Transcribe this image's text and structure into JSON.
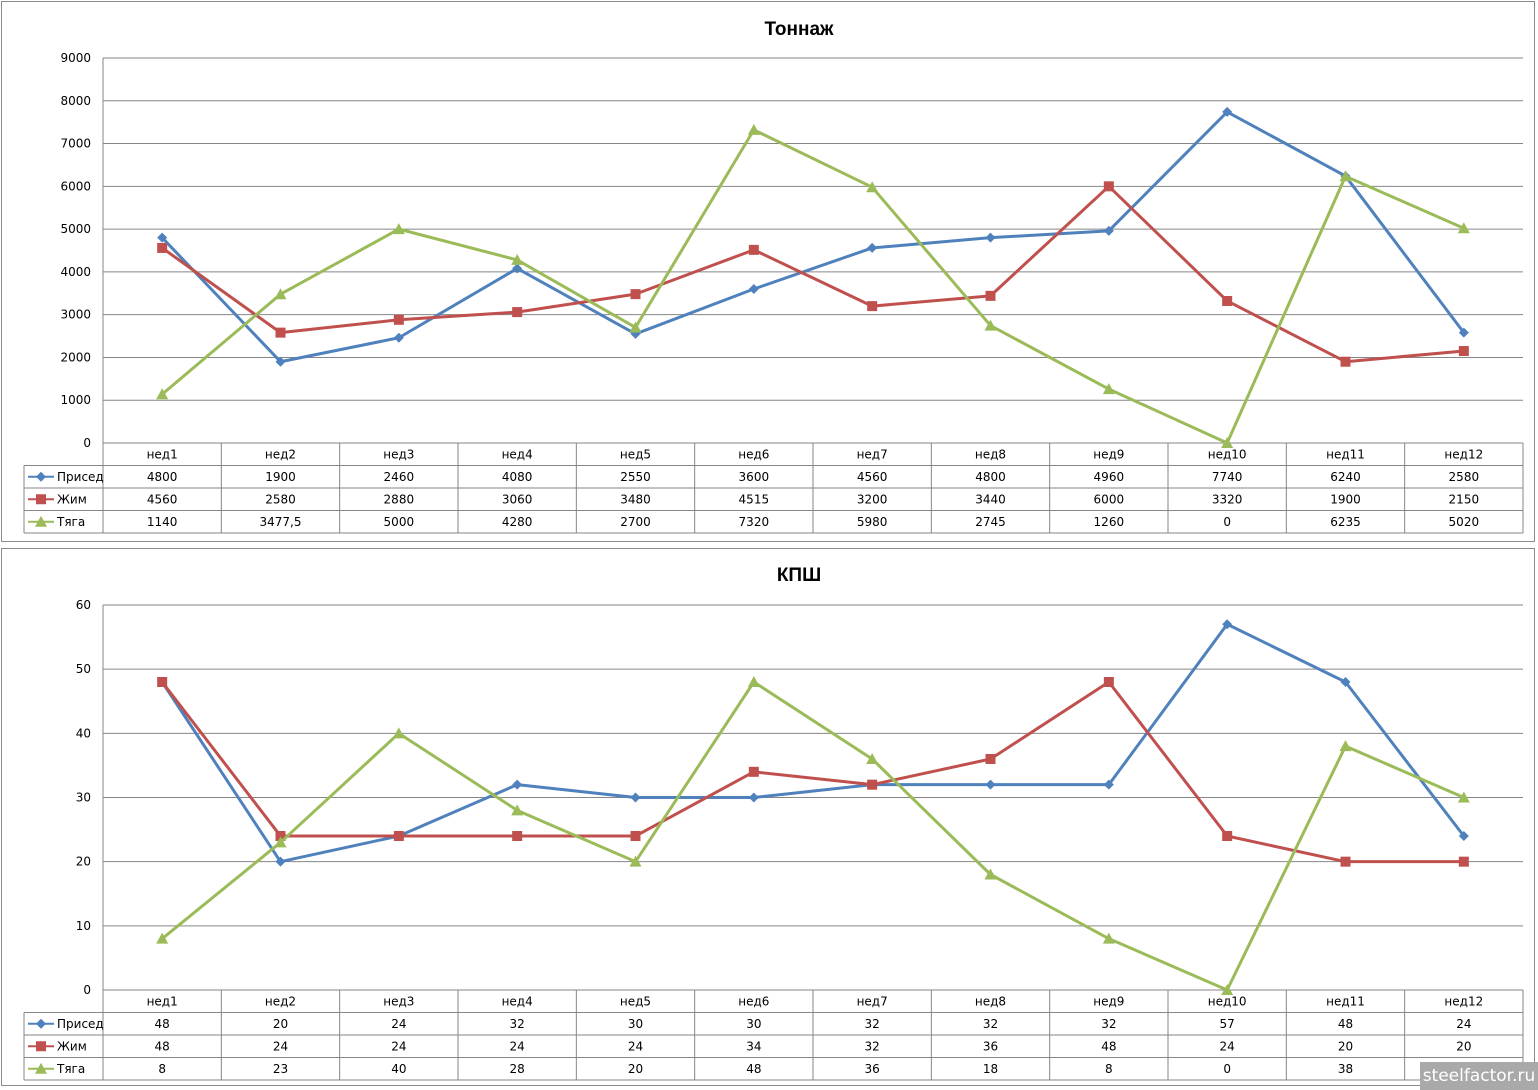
{
  "watermark": "steelfactor.ru",
  "colors": {
    "series": [
      "#4f81bd",
      "#c0504d",
      "#9bbb59"
    ],
    "grid": "#868686",
    "border": "#8c8c8c"
  },
  "chart_data": [
    {
      "type": "line",
      "title": "Тоннаж",
      "categories": [
        "нед1",
        "нед2",
        "нед3",
        "нед4",
        "нед5",
        "нед6",
        "нед7",
        "нед8",
        "нед9",
        "нед10",
        "нед11",
        "нед12"
      ],
      "ylim": [
        0,
        9000
      ],
      "yticks": [
        0,
        1000,
        2000,
        3000,
        4000,
        5000,
        6000,
        7000,
        8000,
        9000
      ],
      "grid": true,
      "legend": "data-table-left",
      "series": [
        {
          "name": "Присед",
          "marker": "diamond",
          "values": [
            4800,
            1900,
            2460,
            4080,
            2550,
            3600,
            4560,
            4800,
            4960,
            7740,
            6240,
            2580
          ],
          "labels": [
            "4800",
            "1900",
            "2460",
            "4080",
            "2550",
            "3600",
            "4560",
            "4800",
            "4960",
            "7740",
            "6240",
            "2580"
          ]
        },
        {
          "name": "Жим",
          "marker": "square",
          "values": [
            4560,
            2580,
            2880,
            3060,
            3480,
            4515,
            3200,
            3440,
            6000,
            3320,
            1900,
            2150
          ],
          "labels": [
            "4560",
            "2580",
            "2880",
            "3060",
            "3480",
            "4515",
            "3200",
            "3440",
            "6000",
            "3320",
            "1900",
            "2150"
          ]
        },
        {
          "name": "Тяга",
          "marker": "triangle",
          "values": [
            1140,
            3477.5,
            5000,
            4280,
            2700,
            7320,
            5980,
            2745,
            1260,
            0,
            6235,
            5020
          ],
          "labels": [
            "1140",
            "3477,5",
            "5000",
            "4280",
            "2700",
            "7320",
            "5980",
            "2745",
            "1260",
            "0",
            "6235",
            "5020"
          ]
        }
      ]
    },
    {
      "type": "line",
      "title": "КПШ",
      "categories": [
        "нед1",
        "нед2",
        "нед3",
        "нед4",
        "нед5",
        "нед6",
        "нед7",
        "нед8",
        "нед9",
        "нед10",
        "нед11",
        "нед12"
      ],
      "ylim": [
        0,
        60
      ],
      "yticks": [
        0,
        10,
        20,
        30,
        40,
        50,
        60
      ],
      "grid": true,
      "legend": "data-table-left",
      "series": [
        {
          "name": "Присед",
          "marker": "diamond",
          "values": [
            48,
            20,
            24,
            32,
            30,
            30,
            32,
            32,
            32,
            57,
            48,
            24
          ],
          "labels": [
            "48",
            "20",
            "24",
            "32",
            "30",
            "30",
            "32",
            "32",
            "32",
            "57",
            "48",
            "24"
          ]
        },
        {
          "name": "Жим",
          "marker": "square",
          "values": [
            48,
            24,
            24,
            24,
            24,
            34,
            32,
            36,
            48,
            24,
            20,
            20
          ],
          "labels": [
            "48",
            "24",
            "24",
            "24",
            "24",
            "34",
            "32",
            "36",
            "48",
            "24",
            "20",
            "20"
          ]
        },
        {
          "name": "Тяга",
          "marker": "triangle",
          "values": [
            8,
            23,
            40,
            28,
            20,
            48,
            36,
            18,
            8,
            0,
            38,
            30
          ],
          "labels": [
            "8",
            "23",
            "40",
            "28",
            "20",
            "48",
            "36",
            "18",
            "8",
            "0",
            "38",
            "30"
          ]
        }
      ]
    }
  ]
}
